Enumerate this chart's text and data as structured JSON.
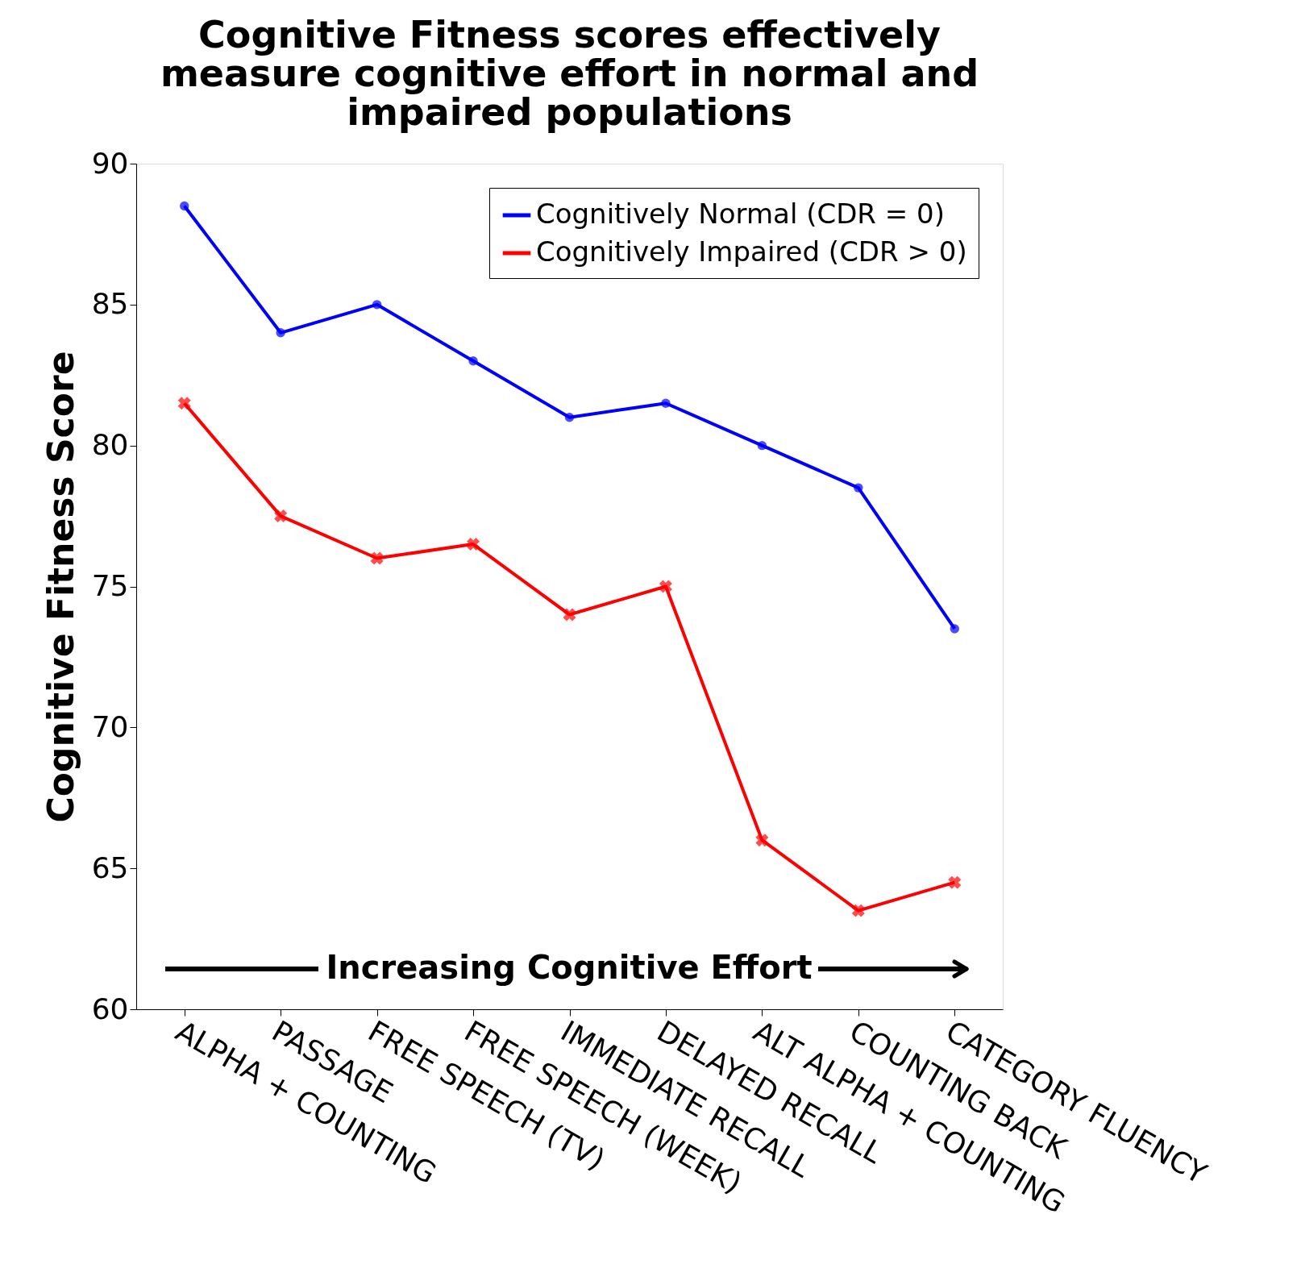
{
  "chart_data": {
    "type": "line",
    "title": [
      "Cognitive Fitness scores effectively",
      "measure cognitive effort in normal and",
      "impaired populations"
    ],
    "ylabel": "Cognitive Fitness Score",
    "categories": [
      "ALPHA + COUNTING",
      "PASSAGE",
      "FREE SPEECH (TV)",
      "FREE SPEECH (WEEK)",
      "IMMEDIATE RECALL",
      "DELAYED RECALL",
      "ALT ALPHA + COUNTING",
      "COUNTING BACK",
      "CATEGORY FLUENCY"
    ],
    "series": [
      {
        "name": "Cognitively Normal (CDR = 0)",
        "color": "#0000ff",
        "marker": "circle",
        "values": [
          88.5,
          84,
          85,
          83,
          81,
          81.5,
          80,
          78.5,
          73.5
        ]
      },
      {
        "name": "Cognitively Impaired (CDR > 0)",
        "color": "#ff0000",
        "marker": "cross",
        "values": [
          81.5,
          77.5,
          76,
          76.5,
          74,
          75,
          66,
          63.5,
          64.5
        ]
      }
    ],
    "ylim": [
      60,
      90
    ],
    "yticks": [
      60,
      65,
      70,
      75,
      80,
      85,
      90
    ],
    "grid": false,
    "legend": "top right",
    "line_style": "solid",
    "annotations": [
      "Increasing Cognitive Effort"
    ]
  }
}
